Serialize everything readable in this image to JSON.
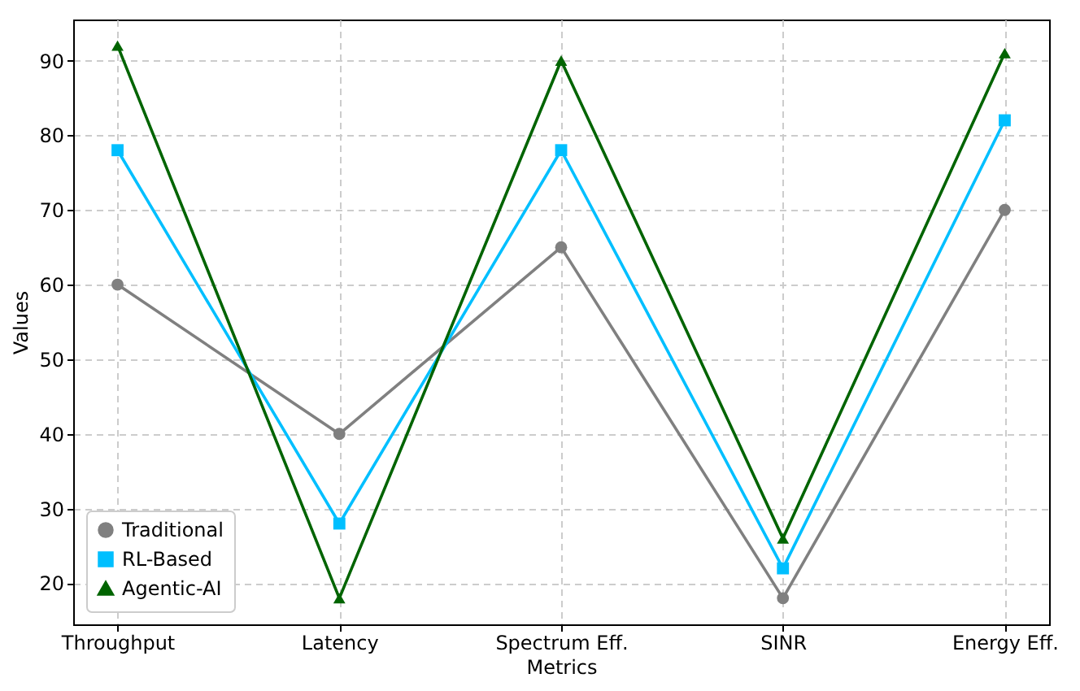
{
  "chart_data": {
    "type": "line",
    "xlabel": "Metrics",
    "ylabel": "Values",
    "categories": [
      "Throughput",
      "Latency",
      "Spectrum Eff.",
      "SINR",
      "Energy Eff."
    ],
    "series": [
      {
        "name": "Traditional",
        "color": "#808080",
        "marker": "circle",
        "values": [
          60,
          40,
          65,
          18,
          70
        ]
      },
      {
        "name": "RL-Based",
        "color": "#00bfff",
        "marker": "square",
        "values": [
          78,
          28,
          78,
          22,
          82
        ]
      },
      {
        "name": "Agentic-AI",
        "color": "#006400",
        "marker": "triangle",
        "values": [
          92,
          18,
          90,
          26,
          91
        ]
      }
    ],
    "ylim": [
      14.5,
      95.5
    ],
    "yticks": [
      20,
      30,
      40,
      50,
      60,
      70,
      80,
      90
    ],
    "grid": true,
    "legend": "bottom left",
    "line_style": "solid"
  }
}
